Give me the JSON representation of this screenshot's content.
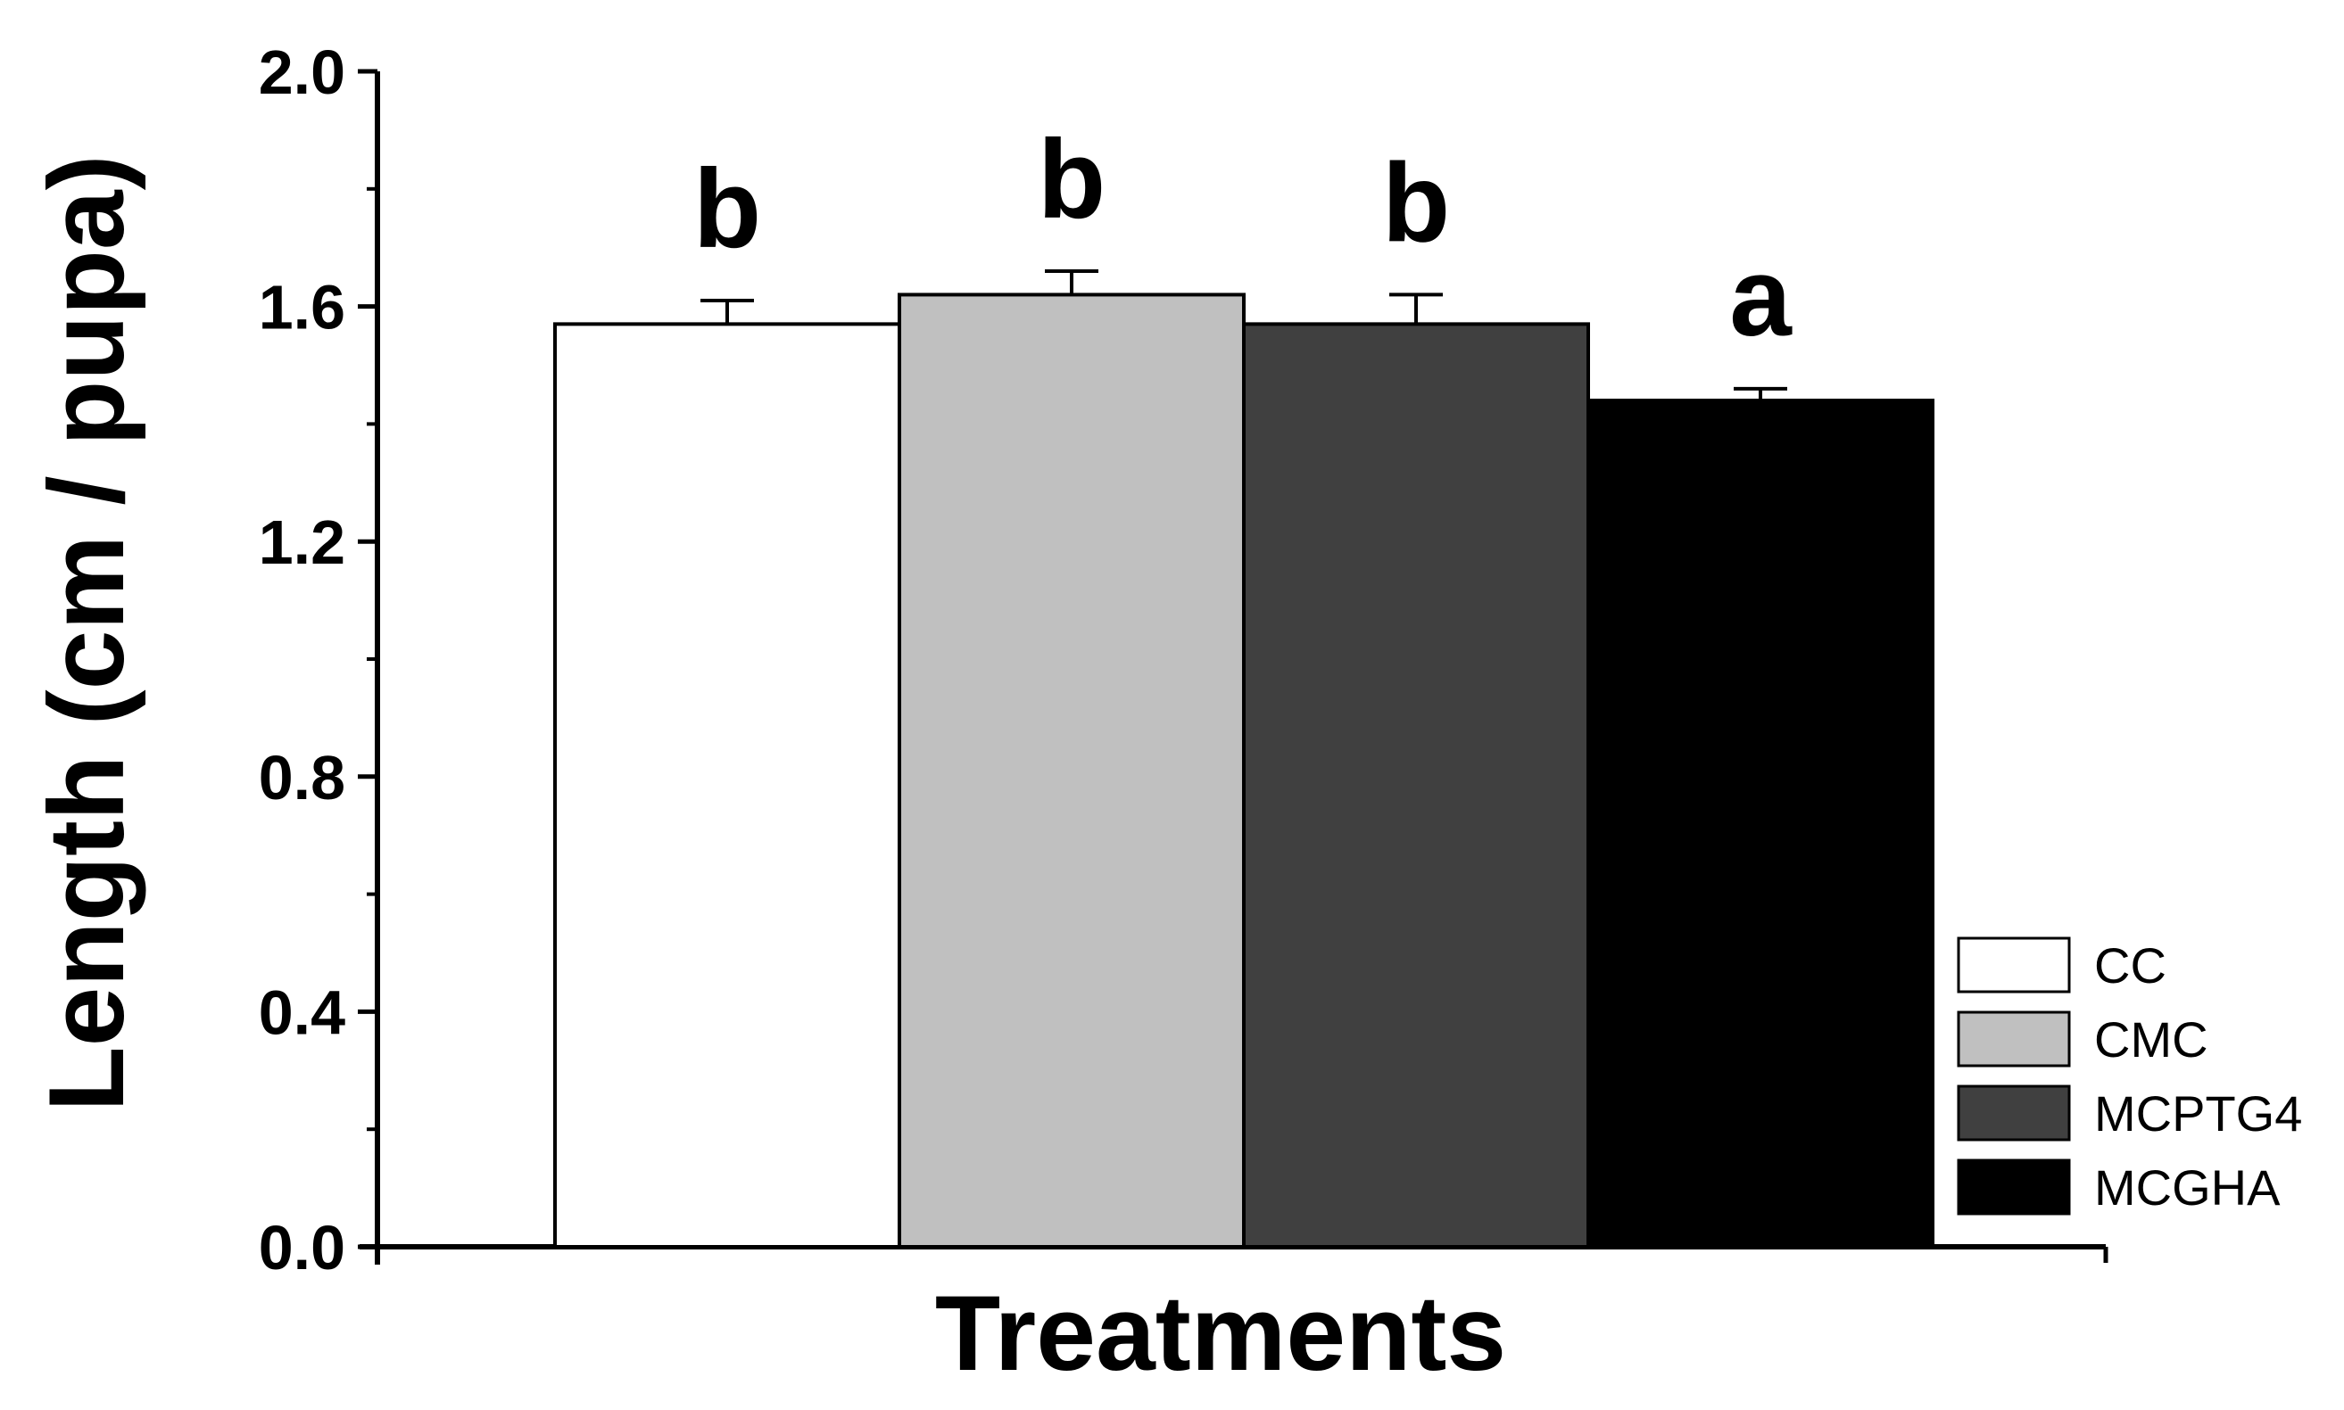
{
  "chart_data": {
    "type": "bar",
    "title": "",
    "xlabel": "Treatments",
    "ylabel": "Length (cm / pupa)",
    "ylim": [
      0,
      2.0
    ],
    "y_ticks": [
      "0.0",
      "0.4",
      "0.8",
      "1.2",
      "1.6",
      "2.0"
    ],
    "y_tick_values": [
      0,
      0.4,
      0.8,
      1.2,
      1.6,
      2.0
    ],
    "grid": false,
    "legend_position": "bottom-right",
    "bars": [
      {
        "name": "CC",
        "value": 1.57,
        "error": 0.04,
        "letter": "b",
        "color": "#ffffff"
      },
      {
        "name": "CMC",
        "value": 1.62,
        "error": 0.04,
        "letter": "b",
        "color": "#c0c0c0"
      },
      {
        "name": "MCPTG4",
        "value": 1.57,
        "error": 0.05,
        "letter": "b",
        "color": "#404040"
      },
      {
        "name": "MCGHA",
        "value": 1.44,
        "error": 0.02,
        "letter": "a",
        "color": "#000000"
      }
    ]
  }
}
